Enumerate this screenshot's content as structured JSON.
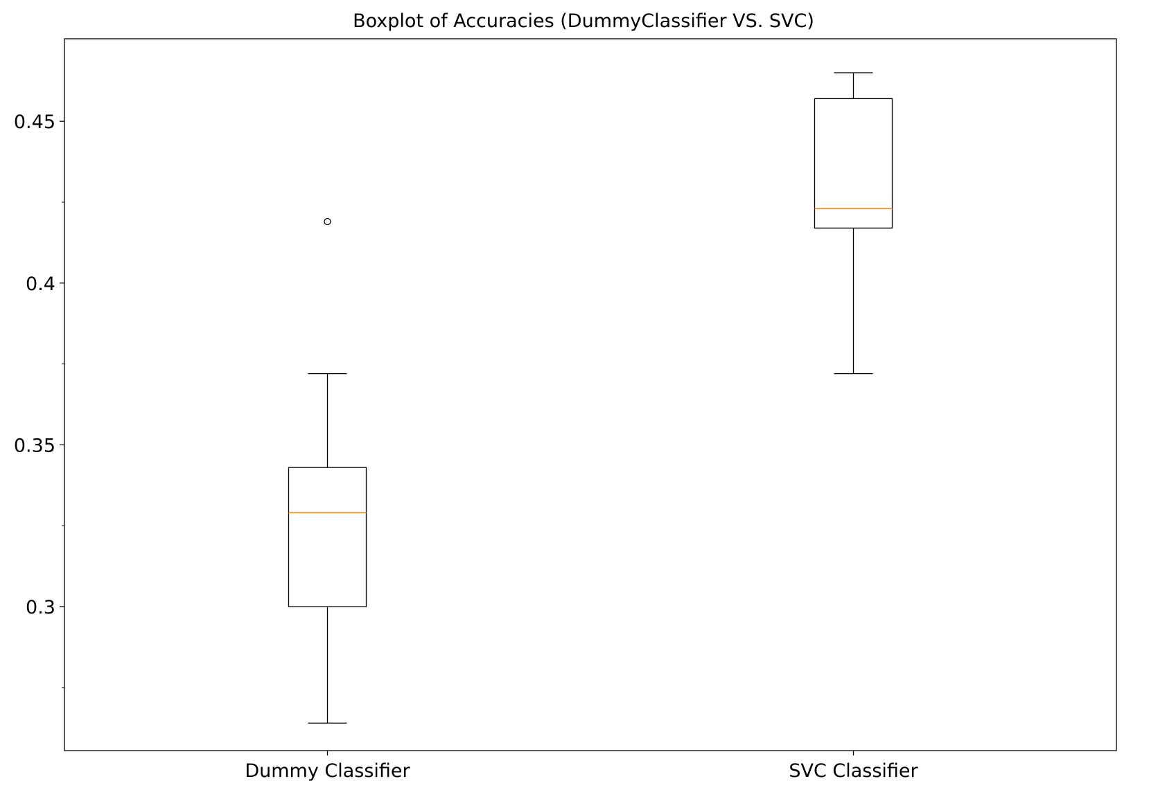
{
  "chart_data": {
    "type": "boxplot",
    "title": "Boxplot of Accuracies (DummyClassifier VS. SVC)",
    "xlabel": "",
    "ylabel": "",
    "ylim": [
      0.2555,
      0.4755
    ],
    "y_ticks": [
      0.3,
      0.35,
      0.4,
      0.45
    ],
    "y_tick_labels": [
      "0.3",
      "0.35",
      "0.4",
      "0.45"
    ],
    "y_minor_ticks": [
      0.275,
      0.325,
      0.375,
      0.425
    ],
    "categories": [
      "Dummy Classifier",
      "SVC Classifier"
    ],
    "grid": false,
    "legend": "none",
    "series": [
      {
        "label": "Dummy Classifier",
        "whisker_low": 0.264,
        "q1": 0.3,
        "median": 0.329,
        "q3": 0.343,
        "whisker_high": 0.372,
        "outliers": [
          0.419
        ]
      },
      {
        "label": "SVC Classifier",
        "whisker_low": 0.372,
        "q1": 0.417,
        "median": 0.423,
        "q3": 0.457,
        "whisker_high": 0.465,
        "outliers": []
      }
    ],
    "colors": {
      "box": "#000000",
      "median": "#ff7f0e",
      "outlier": "#000000"
    }
  }
}
